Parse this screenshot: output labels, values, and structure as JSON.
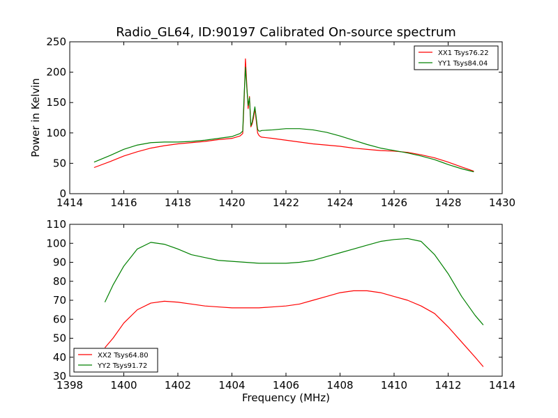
{
  "chart_data": [
    {
      "type": "line",
      "title": "Radio_GL64, ID:90197 Calibrated On-source spectrum",
      "xlabel": "",
      "ylabel": "Power in Kelvin",
      "xlim": [
        1414,
        1430
      ],
      "ylim": [
        0,
        250
      ],
      "xticks": [
        1414,
        1416,
        1418,
        1420,
        1422,
        1424,
        1426,
        1428,
        1430
      ],
      "yticks": [
        0,
        50,
        100,
        150,
        200,
        250
      ],
      "grid": false,
      "legend": "top-right",
      "series": [
        {
          "name": "XX1 Tsys76.22",
          "color": "#ff0000",
          "x": [
            1414.9,
            1415.5,
            1416.0,
            1416.5,
            1417.0,
            1417.5,
            1418.0,
            1418.5,
            1419.0,
            1419.5,
            1420.0,
            1420.3,
            1420.4,
            1420.45,
            1420.5,
            1420.55,
            1420.6,
            1420.65,
            1420.7,
            1420.75,
            1420.8,
            1420.85,
            1420.9,
            1420.95,
            1421.0,
            1421.05,
            1421.1,
            1421.5,
            1422.0,
            1422.5,
            1423.0,
            1423.5,
            1424.0,
            1424.5,
            1425.0,
            1425.5,
            1426.0,
            1426.5,
            1427.0,
            1427.5,
            1428.0,
            1428.5,
            1428.95
          ],
          "y": [
            43,
            53,
            62,
            69,
            75,
            79,
            82,
            84,
            86,
            89,
            91,
            95,
            99,
            150,
            222,
            180,
            140,
            160,
            110,
            115,
            125,
            140,
            120,
            100,
            96,
            94,
            93,
            91,
            88,
            85,
            82,
            80,
            78,
            75,
            73,
            71,
            70,
            68,
            64,
            59,
            52,
            44,
            37
          ]
        },
        {
          "name": "YY1 Tsys84.04",
          "color": "#008000",
          "x": [
            1414.9,
            1415.5,
            1416.0,
            1416.5,
            1417.0,
            1417.5,
            1418.0,
            1418.5,
            1419.0,
            1419.5,
            1420.0,
            1420.3,
            1420.4,
            1420.45,
            1420.5,
            1420.55,
            1420.6,
            1420.65,
            1420.7,
            1420.75,
            1420.8,
            1420.85,
            1420.9,
            1420.95,
            1421.0,
            1421.05,
            1421.1,
            1421.5,
            1422.0,
            1422.5,
            1423.0,
            1423.5,
            1424.0,
            1424.5,
            1425.0,
            1425.5,
            1426.0,
            1426.5,
            1427.0,
            1427.5,
            1428.0,
            1428.5,
            1428.95
          ],
          "y": [
            52,
            63,
            73,
            80,
            84,
            85,
            85,
            86,
            88,
            91,
            94,
            99,
            103,
            160,
            208,
            175,
            145,
            158,
            112,
            118,
            130,
            143,
            125,
            106,
            103,
            103,
            104,
            105,
            107,
            107,
            105,
            101,
            95,
            88,
            81,
            75,
            71,
            67,
            62,
            56,
            48,
            41,
            36
          ]
        }
      ]
    },
    {
      "type": "line",
      "title": "",
      "xlabel": "Frequency (MHz)",
      "ylabel": "",
      "xlim": [
        1398,
        1414
      ],
      "ylim": [
        30,
        110
      ],
      "xticks": [
        1398,
        1400,
        1402,
        1404,
        1406,
        1408,
        1410,
        1412,
        1414
      ],
      "yticks": [
        30,
        40,
        50,
        60,
        70,
        80,
        90,
        100,
        110
      ],
      "grid": false,
      "legend": "bottom-left",
      "series": [
        {
          "name": "XX2 Tsys64.80",
          "color": "#ff0000",
          "x": [
            1399.3,
            1399.6,
            1400.0,
            1400.5,
            1401.0,
            1401.5,
            1402.0,
            1402.5,
            1403.0,
            1403.5,
            1404.0,
            1404.5,
            1405.0,
            1405.5,
            1406.0,
            1406.5,
            1407.0,
            1407.5,
            1408.0,
            1408.5,
            1409.0,
            1409.5,
            1410.0,
            1410.5,
            1411.0,
            1411.5,
            1412.0,
            1412.5,
            1413.0,
            1413.3
          ],
          "y": [
            45,
            50,
            58,
            65,
            68.5,
            69.5,
            69,
            68,
            67,
            66.5,
            66,
            66,
            66,
            66.5,
            67,
            68,
            70,
            72,
            74,
            75,
            75,
            74,
            72,
            70,
            67,
            63,
            56,
            48,
            40,
            35
          ]
        },
        {
          "name": "YY2 Tsys91.72",
          "color": "#008000",
          "x": [
            1399.3,
            1399.6,
            1400.0,
            1400.5,
            1401.0,
            1401.5,
            1402.0,
            1402.5,
            1403.0,
            1403.5,
            1404.0,
            1404.5,
            1405.0,
            1405.5,
            1406.0,
            1406.5,
            1407.0,
            1407.5,
            1408.0,
            1408.5,
            1409.0,
            1409.5,
            1410.0,
            1410.5,
            1411.0,
            1411.5,
            1412.0,
            1412.5,
            1413.0,
            1413.3
          ],
          "y": [
            69,
            78,
            88,
            97,
            100.5,
            99.5,
            97,
            94,
            92.5,
            91,
            90.5,
            90,
            89.5,
            89.5,
            89.5,
            90,
            91,
            93,
            95,
            97,
            99,
            101,
            102,
            102.5,
            101,
            94,
            84,
            72,
            62,
            57
          ]
        }
      ]
    }
  ]
}
